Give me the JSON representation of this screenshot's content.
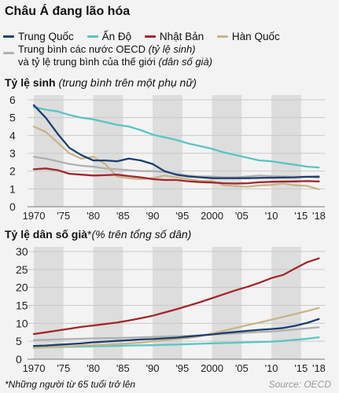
{
  "title": "Châu Á đang lão hóa",
  "legend": {
    "china": "Trung Quốc",
    "india": "Ấn Độ",
    "japan": "Nhật Bản",
    "korea": "Hàn Quốc",
    "oecd_line1": "Trung bình các nước OECD ",
    "oecd_note1": "(tỷ lệ sinh)",
    "oecd_line2": "và tỷ lệ trung bình của thế giới ",
    "oecd_note2": "(dân số già)"
  },
  "colors": {
    "china": "#1c3f6e",
    "india": "#5bc4c4",
    "japan": "#a3262b",
    "korea": "#c8b48a",
    "oecd": "#b0b0b0",
    "band": "#dddddd",
    "grid": "#c9c9c9"
  },
  "footnote": "*Những người từ 65 tuổi trở lên",
  "source": "Source: OECD",
  "chart_data": [
    {
      "type": "line",
      "title_bold": "Tỷ lệ sinh",
      "title_italic": "(trung bình trên một phụ nữ)",
      "x": [
        1970,
        1972,
        1974,
        1976,
        1978,
        1980,
        1982,
        1984,
        1986,
        1988,
        1990,
        1992,
        1994,
        1996,
        1998,
        2000,
        2002,
        2004,
        2006,
        2008,
        2010,
        2012,
        2014,
        2016,
        2018
      ],
      "xticks": [
        1970,
        1975,
        1980,
        1985,
        1990,
        1995,
        2000,
        2005,
        2010,
        2015,
        2018
      ],
      "xtick_labels": [
        "1970",
        "'75",
        "'80",
        "'85",
        "'90",
        "'95",
        "2000",
        "'05",
        "'10",
        "'15",
        "'18"
      ],
      "ylim": [
        0,
        6
      ],
      "yticks": [
        0,
        1,
        2,
        3,
        4,
        5,
        6
      ],
      "grid": true,
      "series": [
        {
          "key": "oecd",
          "name": "Trung bình các nước OECD",
          "values": [
            2.8,
            2.7,
            2.55,
            2.4,
            2.3,
            2.25,
            2.15,
            2.1,
            2.05,
            2.0,
            2.0,
            1.95,
            1.85,
            1.75,
            1.7,
            1.7,
            1.65,
            1.65,
            1.7,
            1.75,
            1.72,
            1.7,
            1.68,
            1.68,
            1.63
          ]
        },
        {
          "key": "india",
          "name": "Ấn Độ",
          "values": [
            5.6,
            5.45,
            5.35,
            5.15,
            5.0,
            4.9,
            4.75,
            4.6,
            4.5,
            4.3,
            4.05,
            3.9,
            3.75,
            3.55,
            3.4,
            3.25,
            3.05,
            2.9,
            2.75,
            2.6,
            2.55,
            2.45,
            2.35,
            2.25,
            2.2
          ]
        },
        {
          "key": "korea",
          "name": "Hàn Quốc",
          "values": [
            4.5,
            4.2,
            3.6,
            3.0,
            2.7,
            2.8,
            2.4,
            1.7,
            1.6,
            1.55,
            1.6,
            1.75,
            1.65,
            1.55,
            1.45,
            1.45,
            1.2,
            1.15,
            1.12,
            1.2,
            1.22,
            1.3,
            1.2,
            1.17,
            0.98
          ]
        },
        {
          "key": "china",
          "name": "Trung Quốc",
          "values": [
            5.7,
            5.0,
            4.1,
            3.3,
            2.9,
            2.6,
            2.6,
            2.55,
            2.7,
            2.6,
            2.4,
            2.0,
            1.8,
            1.7,
            1.65,
            1.6,
            1.6,
            1.6,
            1.6,
            1.62,
            1.63,
            1.64,
            1.65,
            1.68,
            1.69
          ]
        },
        {
          "key": "japan",
          "name": "Nhật Bản",
          "values": [
            2.1,
            2.15,
            2.05,
            1.85,
            1.8,
            1.75,
            1.77,
            1.8,
            1.72,
            1.65,
            1.55,
            1.5,
            1.5,
            1.43,
            1.38,
            1.36,
            1.32,
            1.3,
            1.32,
            1.37,
            1.4,
            1.41,
            1.42,
            1.44,
            1.42
          ]
        }
      ]
    },
    {
      "type": "line",
      "title_bold": "Tỷ lệ dân số già",
      "title_star": "*",
      "title_italic": "(% trên tổng số dân)",
      "x": [
        1970,
        1972,
        1974,
        1976,
        1978,
        1980,
        1982,
        1984,
        1986,
        1988,
        1990,
        1992,
        1994,
        1996,
        1998,
        2000,
        2002,
        2004,
        2006,
        2008,
        2010,
        2012,
        2014,
        2016,
        2018
      ],
      "xticks": [
        1970,
        1975,
        1980,
        1985,
        1990,
        1995,
        2000,
        2005,
        2010,
        2015,
        2018
      ],
      "xtick_labels": [
        "1970",
        "'75",
        "'80",
        "'85",
        "'90",
        "'95",
        "2000",
        "'05",
        "'10",
        "'15",
        "'18"
      ],
      "ylim": [
        0,
        30
      ],
      "yticks": [
        0,
        5,
        10,
        15,
        20,
        25,
        30
      ],
      "grid": true,
      "series": [
        {
          "key": "oecd",
          "name": "Trung bình của thế giới",
          "values": [
            5.3,
            5.4,
            5.5,
            5.6,
            5.7,
            5.8,
            5.85,
            5.9,
            6.0,
            6.1,
            6.2,
            6.3,
            6.4,
            6.5,
            6.7,
            6.9,
            7.0,
            7.2,
            7.4,
            7.6,
            7.7,
            8.0,
            8.3,
            8.6,
            8.9
          ]
        },
        {
          "key": "india",
          "name": "Ấn Độ",
          "values": [
            3.3,
            3.35,
            3.4,
            3.45,
            3.5,
            3.6,
            3.65,
            3.7,
            3.8,
            3.85,
            3.9,
            4.0,
            4.1,
            4.2,
            4.3,
            4.4,
            4.5,
            4.6,
            4.7,
            4.8,
            4.9,
            5.1,
            5.4,
            5.7,
            6.1
          ]
        },
        {
          "key": "korea",
          "name": "Hàn Quốc",
          "values": [
            3.1,
            3.3,
            3.5,
            3.6,
            3.8,
            3.9,
            4.0,
            4.2,
            4.4,
            4.6,
            5.0,
            5.3,
            5.6,
            5.9,
            6.4,
            7.2,
            7.9,
            8.7,
            9.5,
            10.2,
            11.0,
            11.8,
            12.6,
            13.4,
            14.3
          ]
        },
        {
          "key": "china",
          "name": "Trung Quốc",
          "values": [
            3.7,
            3.8,
            4.0,
            4.2,
            4.4,
            4.7,
            4.9,
            5.1,
            5.3,
            5.5,
            5.6,
            5.8,
            6.0,
            6.3,
            6.6,
            6.9,
            7.3,
            7.6,
            7.9,
            8.2,
            8.4,
            8.7,
            9.3,
            10.1,
            11.2
          ]
        },
        {
          "key": "japan",
          "name": "Nhật Bản",
          "values": [
            7.0,
            7.5,
            8.0,
            8.5,
            9.0,
            9.4,
            9.8,
            10.2,
            10.8,
            11.4,
            12.1,
            13.0,
            13.9,
            14.9,
            15.9,
            17.0,
            18.1,
            19.2,
            20.2,
            21.3,
            22.6,
            23.5,
            25.3,
            27.0,
            28.1
          ]
        }
      ]
    }
  ]
}
